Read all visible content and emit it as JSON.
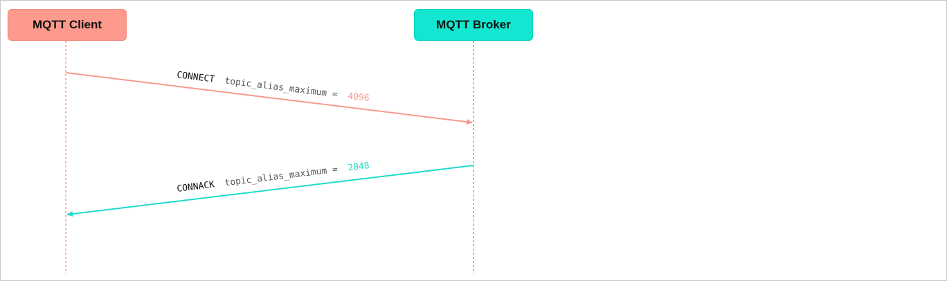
{
  "participants": {
    "client": {
      "label": "MQTT Client",
      "color": "#fd9a8d"
    },
    "broker": {
      "label": "MQTT Broker",
      "color": "#13e6d1"
    }
  },
  "messages": [
    {
      "from": "client",
      "to": "broker",
      "name": "CONNECT",
      "param": "topic_alias_maximum =",
      "value": "4096",
      "color": "#f8998c"
    },
    {
      "from": "broker",
      "to": "client",
      "name": "CONNACK",
      "param": "topic_alias_maximum =",
      "value": "2048",
      "color": "#1fdccb"
    }
  ]
}
